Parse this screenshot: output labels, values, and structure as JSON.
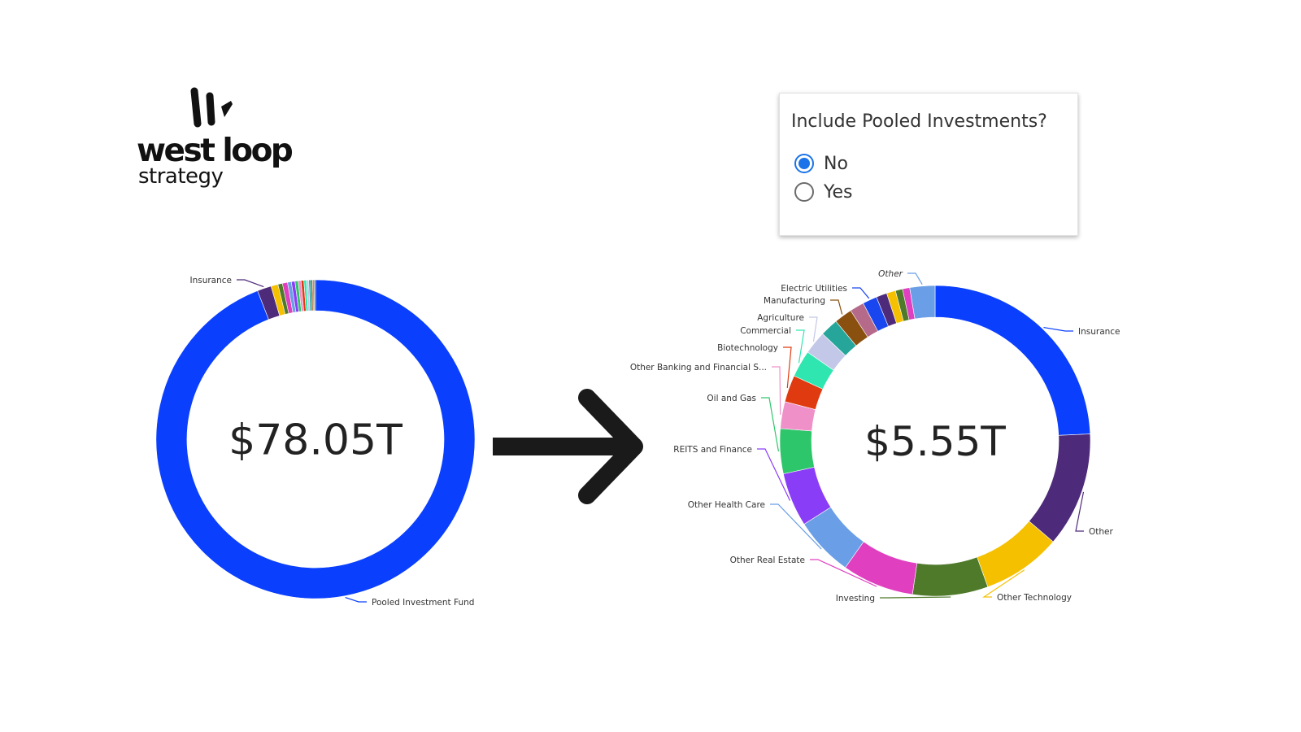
{
  "brand": {
    "line1": "west loop",
    "line2": "strategy",
    "color": "#111111"
  },
  "filter": {
    "title": "Include Pooled Investments?",
    "options": [
      {
        "label": "No",
        "selected": true
      },
      {
        "label": "Yes",
        "selected": false
      }
    ],
    "accent": "#1a73e8"
  },
  "arrow": {
    "icon": "right-arrow-icon",
    "color": "#1a1a1a"
  },
  "chart_data": [
    {
      "type": "pie",
      "title": "",
      "center_label": "$78.05T",
      "labeled_slices": [
        "Insurance",
        "Pooled Investment Fund"
      ],
      "slices": [
        {
          "label": "Pooled Investment Fund",
          "value": 72.5,
          "color": "#0a3ffe"
        },
        {
          "label": "Insurance",
          "value": 1.1,
          "color": "#4e2a7b"
        },
        {
          "label": "",
          "value": 0.55,
          "color": "#f5c000"
        },
        {
          "label": "",
          "value": 0.35,
          "color": "#4e7a2a"
        },
        {
          "label": "",
          "value": 0.4,
          "color": "#e040c0"
        },
        {
          "label": "",
          "value": 0.3,
          "color": "#6a9ee6"
        },
        {
          "label": "",
          "value": 0.28,
          "color": "#8a3df7"
        },
        {
          "label": "",
          "value": 0.25,
          "color": "#2ec66a"
        },
        {
          "label": "",
          "value": 0.22,
          "color": "#f090c8"
        },
        {
          "label": "",
          "value": 0.22,
          "color": "#e03a10"
        },
        {
          "label": "",
          "value": 0.2,
          "color": "#30e6b0"
        },
        {
          "label": "",
          "value": 0.18,
          "color": "#c4c8e8"
        },
        {
          "label": "",
          "value": 0.16,
          "color": "#26a69a"
        },
        {
          "label": "",
          "value": 0.14,
          "color": "#8a5010"
        },
        {
          "label": "",
          "value": 0.12,
          "color": "#999999"
        },
        {
          "label": "",
          "value": 0.1,
          "color": "#555555"
        }
      ]
    },
    {
      "type": "pie",
      "title": "",
      "center_label": "$5.55T",
      "slices": [
        {
          "label": "Insurance",
          "value": 1.3,
          "color": "#0a3ffe"
        },
        {
          "label": "Other",
          "value": 0.64,
          "color": "#4e2a7b"
        },
        {
          "label": "Other Technology",
          "value": 0.44,
          "color": "#f5c000"
        },
        {
          "label": "Investing",
          "value": 0.42,
          "color": "#4e7a2a"
        },
        {
          "label": "Other Real Estate",
          "value": 0.4,
          "color": "#e040c0"
        },
        {
          "label": "Other Health Care",
          "value": 0.33,
          "color": "#6a9ee6"
        },
        {
          "label": "REITS and Finance",
          "value": 0.3,
          "color": "#8a3df7"
        },
        {
          "label": "Oil and Gas",
          "value": 0.25,
          "color": "#2ec66a"
        },
        {
          "label": "Other Banking and Financial S...",
          "value": 0.15,
          "color": "#f090c8"
        },
        {
          "label": "Biotechnology",
          "value": 0.15,
          "color": "#e03a10"
        },
        {
          "label": "Commercial",
          "value": 0.15,
          "color": "#30e6b0"
        },
        {
          "label": "Agriculture",
          "value": 0.13,
          "color": "#c4c8e8"
        },
        {
          "label": "",
          "value": 0.1,
          "color": "#26a69a"
        },
        {
          "label": "Manufacturing",
          "value": 0.1,
          "color": "#8a5010"
        },
        {
          "label": "",
          "value": 0.08,
          "color": "#b56a8a"
        },
        {
          "label": "Electric Utilities",
          "value": 0.08,
          "color": "#1a46f0"
        },
        {
          "label": "",
          "value": 0.06,
          "color": "#4e2a7b"
        },
        {
          "label": "",
          "value": 0.05,
          "color": "#f5c000"
        },
        {
          "label": "",
          "value": 0.04,
          "color": "#4e7a2a"
        },
        {
          "label": "",
          "value": 0.04,
          "color": "#e040c0"
        },
        {
          "label": "Other",
          "value": 0.14,
          "color": "#6a9ee6"
        }
      ]
    }
  ]
}
